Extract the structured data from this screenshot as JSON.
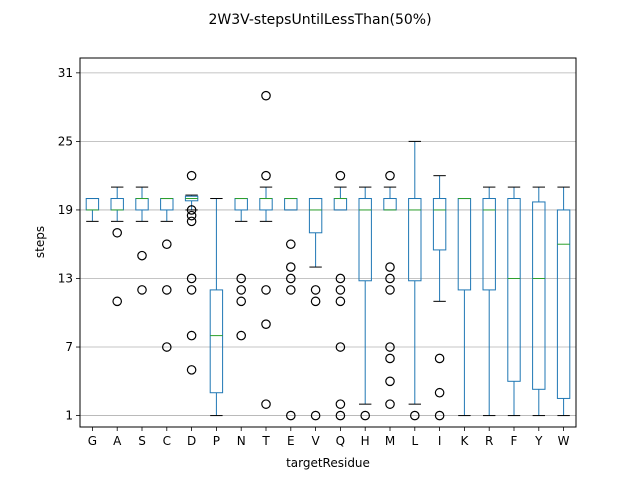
{
  "chart_data": {
    "type": "box",
    "title": "2W3V-stepsUntilLessThan(50%)",
    "xlabel": "targetResidue",
    "ylabel": "steps",
    "ylim": [
      0,
      32.3
    ],
    "yticks": [
      1,
      7,
      13,
      19,
      25,
      31
    ],
    "grid": "y",
    "colors": {
      "box": "#1f77b4",
      "median": "#2ca02c",
      "grid": "#b0b0b0",
      "flier": "#000000"
    },
    "categories": [
      "G",
      "A",
      "S",
      "C",
      "D",
      "P",
      "N",
      "T",
      "E",
      "V",
      "Q",
      "H",
      "M",
      "L",
      "I",
      "K",
      "R",
      "F",
      "Y",
      "W"
    ],
    "boxes": [
      {
        "label": "G",
        "whislo": 18,
        "q1": 19,
        "med": 19,
        "q3": 20,
        "whishi": 20,
        "fliers": []
      },
      {
        "label": "A",
        "whislo": 18,
        "q1": 19,
        "med": 19,
        "q3": 20,
        "whishi": 21,
        "fliers": [
          17,
          11
        ]
      },
      {
        "label": "S",
        "whislo": 18,
        "q1": 19,
        "med": 20,
        "q3": 20,
        "whishi": 21,
        "fliers": [
          15,
          12
        ]
      },
      {
        "label": "C",
        "whislo": 18,
        "q1": 19,
        "med": 20,
        "q3": 20,
        "whishi": 20,
        "fliers": [
          16,
          12,
          7
        ]
      },
      {
        "label": "D",
        "whislo": 19,
        "q1": 19.8,
        "med": 20,
        "q3": 20.2,
        "whishi": 20.3,
        "fliers": [
          22,
          19,
          18.5,
          18,
          13,
          12,
          8,
          5
        ]
      },
      {
        "label": "P",
        "whislo": 1,
        "q1": 3,
        "med": 8,
        "q3": 12,
        "whishi": 20,
        "fliers": []
      },
      {
        "label": "N",
        "whislo": 18,
        "q1": 19,
        "med": 20,
        "q3": 20,
        "whishi": 20,
        "fliers": [
          13,
          12,
          11,
          8
        ]
      },
      {
        "label": "T",
        "whislo": 18,
        "q1": 19,
        "med": 20,
        "q3": 20,
        "whishi": 21,
        "fliers": [
          29,
          22,
          12,
          9,
          2
        ]
      },
      {
        "label": "E",
        "whislo": 19,
        "q1": 19,
        "med": 20,
        "q3": 20,
        "whishi": 20,
        "fliers": [
          16,
          14,
          13,
          12,
          1
        ]
      },
      {
        "label": "V",
        "whislo": 14,
        "q1": 17,
        "med": 19,
        "q3": 20,
        "whishi": 20,
        "fliers": [
          12,
          11,
          1
        ]
      },
      {
        "label": "Q",
        "whislo": 19,
        "q1": 19,
        "med": 20,
        "q3": 20,
        "whishi": 21,
        "fliers": [
          22,
          13,
          12,
          11,
          7,
          2,
          1
        ]
      },
      {
        "label": "H",
        "whislo": 2,
        "q1": 12.8,
        "med": 19,
        "q3": 20,
        "whishi": 21,
        "fliers": [
          1
        ]
      },
      {
        "label": "M",
        "whislo": 19,
        "q1": 19,
        "med": 19,
        "q3": 20,
        "whishi": 21,
        "fliers": [
          22,
          14,
          13,
          12,
          7,
          6,
          4,
          2
        ]
      },
      {
        "label": "L",
        "whislo": 2,
        "q1": 12.8,
        "med": 19,
        "q3": 20,
        "whishi": 25,
        "fliers": [
          1
        ]
      },
      {
        "label": "I",
        "whislo": 11,
        "q1": 15.5,
        "med": 19,
        "q3": 20,
        "whishi": 22,
        "fliers": [
          6,
          3,
          1
        ]
      },
      {
        "label": "K",
        "whislo": 1,
        "q1": 12,
        "med": 20,
        "q3": 20,
        "whishi": 20,
        "fliers": []
      },
      {
        "label": "R",
        "whislo": 1,
        "q1": 12,
        "med": 19,
        "q3": 20,
        "whishi": 21,
        "fliers": []
      },
      {
        "label": "F",
        "whislo": 1,
        "q1": 4,
        "med": 13,
        "q3": 20,
        "whishi": 21,
        "fliers": []
      },
      {
        "label": "Y",
        "whislo": 1,
        "q1": 3.3,
        "med": 13,
        "q3": 19.7,
        "whishi": 21,
        "fliers": []
      },
      {
        "label": "W",
        "whislo": 1,
        "q1": 2.5,
        "med": 16,
        "q3": 19,
        "whishi": 21,
        "fliers": []
      }
    ]
  }
}
